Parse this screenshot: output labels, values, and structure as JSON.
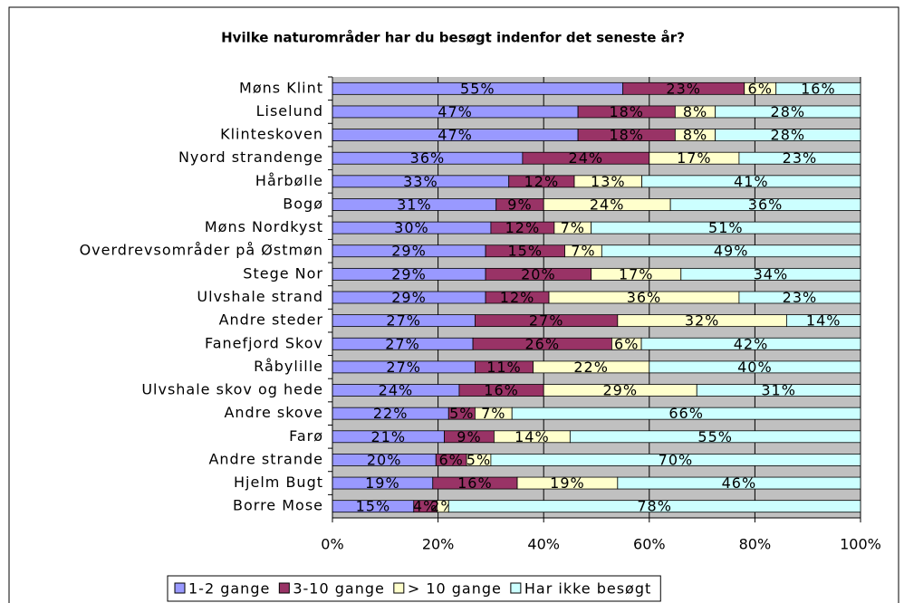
{
  "chart_data": {
    "type": "stacked_barh",
    "title": "Hvilke naturområder har du besøgt indenfor det seneste år?",
    "categories": [
      "Møns Klint",
      "Liselund",
      "Klinteskoven",
      "Nyord strandenge",
      "Hårbølle",
      "Bogø",
      "Møns Nordkyst",
      "Overdrevsområder på Østmøn",
      "Stege Nor",
      "Ulvshale strand",
      "Andre steder",
      "Fanefjord Skov",
      "Råbylille",
      "Ulvshale skov og hede",
      "Andre skove",
      "Farø",
      "Andre strande",
      "Hjelm Bugt",
      "Borre Mose"
    ],
    "series": [
      {
        "name": "1-2 gange",
        "color": "#9999ff",
        "values": [
          55,
          46.5,
          46.5,
          36,
          33.4,
          31,
          30,
          29,
          29,
          29,
          27,
          26.6,
          27,
          24,
          22,
          21.2,
          19.6,
          19,
          15.4
        ],
        "value_labels": [
          "55%",
          "47%",
          "47%",
          "36%",
          "33%",
          "31%",
          "30%",
          "29%",
          "29%",
          "29%",
          "27%",
          "27%",
          "27%",
          "24%",
          "22%",
          "21%",
          "20%",
          "19%",
          "15%"
        ]
      },
      {
        "name": "3-10 gange",
        "color": "#993366",
        "values": [
          23,
          18.4,
          18.4,
          24,
          12.4,
          9,
          12,
          15,
          20,
          12,
          27,
          26.3,
          11,
          16,
          5,
          9.4,
          5.8,
          16,
          4.4
        ],
        "value_labels": [
          "23%",
          "18%",
          "18%",
          "24%",
          "12%",
          "9%",
          "12%",
          "15%",
          "20%",
          "12%",
          "27%",
          "26%",
          "11%",
          "16%",
          "5%",
          "9%",
          "6%",
          "16%",
          "4%"
        ]
      },
      {
        "name": "> 10 gange",
        "color": "#ffffcc",
        "values": [
          6,
          7.6,
          7.6,
          17,
          12.8,
          24,
          7,
          7,
          17,
          36,
          32,
          5.6,
          22,
          29,
          7,
          14.4,
          4.6,
          19,
          2.2
        ],
        "value_labels": [
          "6%",
          "8%",
          "8%",
          "17%",
          "13%",
          "24%",
          "7%",
          "7%",
          "17%",
          "36%",
          "32%",
          "6%",
          "22%",
          "29%",
          "7%",
          "14%",
          "5%",
          "19%",
          "2%"
        ]
      },
      {
        "name": "Har ikke besøgt",
        "color": "#ccffff",
        "values": [
          16,
          27.5,
          27.5,
          23,
          41.4,
          36,
          51,
          49,
          34,
          23,
          14,
          41.5,
          40,
          31,
          66,
          55,
          70,
          46,
          78
        ],
        "value_labels": [
          "16%",
          "28%",
          "28%",
          "23%",
          "41%",
          "36%",
          "51%",
          "49%",
          "34%",
          "23%",
          "14%",
          "42%",
          "40%",
          "31%",
          "66%",
          "55%",
          "70%",
          "46%",
          "78%"
        ]
      }
    ],
    "xlim": [
      0,
      100
    ],
    "xticks": [
      {
        "value": 0,
        "label": "0%"
      },
      {
        "value": 20,
        "label": "20%"
      },
      {
        "value": 40,
        "label": "40%"
      },
      {
        "value": 60,
        "label": "60%"
      },
      {
        "value": 80,
        "label": "80%"
      },
      {
        "value": 100,
        "label": "100%"
      }
    ],
    "grid": true,
    "legend": "bottom"
  }
}
